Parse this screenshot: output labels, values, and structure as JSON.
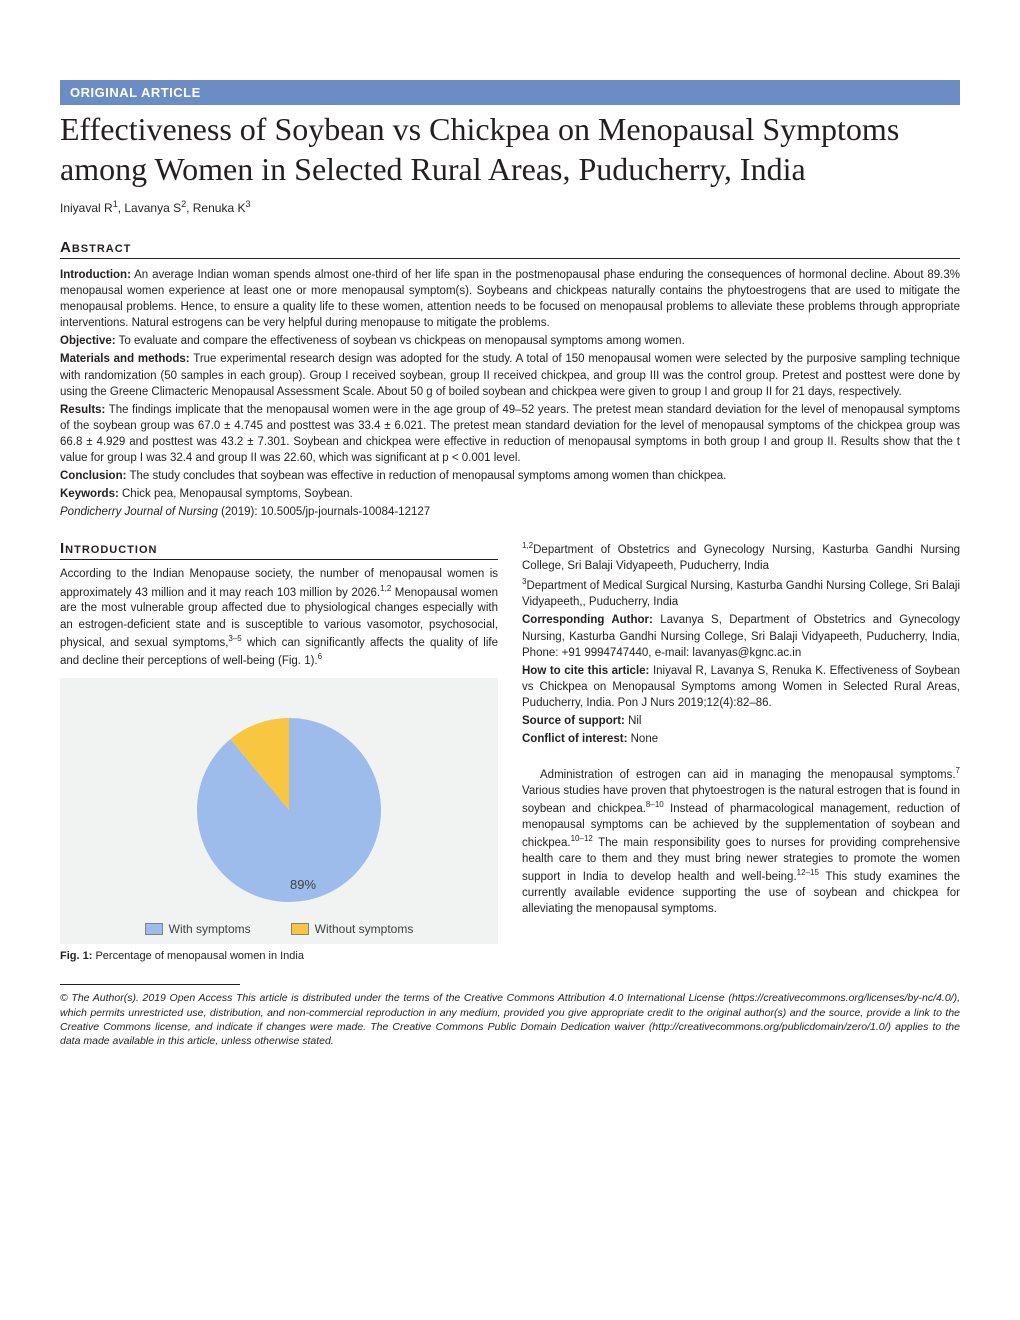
{
  "badge": "ORIGINAL ARTICLE",
  "title": "Effectiveness of Soybean vs Chickpea on Menopausal Symptoms among Women in Selected Rural Areas, Puducherry, India",
  "authors": [
    {
      "name": "Iniyaval R",
      "sup": "1"
    },
    {
      "name": "Lavanya S",
      "sup": "2"
    },
    {
      "name": "Renuka K",
      "sup": "3"
    }
  ],
  "abstract_heading": "Abstract",
  "abstract": {
    "introduction_label": "Introduction:",
    "introduction": "An average Indian woman spends almost one-third of her life span in the postmenopausal phase enduring the consequences of hormonal decline. About 89.3% menopausal women experience at least one or more menopausal symptom(s). Soybeans and chickpeas naturally contains the phytoestrogens that are used to mitigate the menopausal problems. Hence, to ensure a quality life to these women, attention needs to be focused on menopausal problems to alleviate these problems through appropriate interventions. Natural estrogens can be very helpful during menopause to mitigate the problems.",
    "objective_label": "Objective:",
    "objective": "To evaluate and compare the effectiveness of soybean vs chickpeas on menopausal symptoms among women.",
    "methods_label": "Materials and methods:",
    "methods": "True experimental research design was adopted for the study. A total of 150 menopausal women were selected by the purposive sampling technique with randomization (50 samples in each group). Group I received soybean, group II received chickpea, and group III was the control group. Pretest and posttest were done by using the Greene Climacteric Menopausal Assessment Scale. About 50 g of boiled soybean and chickpea were given to group I and group II for 21 days, respectively.",
    "results_label": "Results:",
    "results": "The findings implicate that the menopausal women were in the age group of 49–52 years. The pretest mean standard deviation for the level of menopausal symptoms of the soybean group was 67.0 ± 4.745 and posttest was 33.4 ± 6.021. The pretest mean standard deviation for the level of menopausal symptoms of the chickpea group was 66.8 ± 4.929 and posttest was 43.2 ± 7.301. Soybean and chickpea were effective in reduction of menopausal symptoms in both group I and group II. Results show that the t value for group I was 32.4 and group II was 22.60, which was significant at p < 0.001 level.",
    "conclusion_label": "Conclusion:",
    "conclusion": "The study concludes that soybean was effective in reduction of menopausal symptoms among women than chickpea.",
    "keywords_label": "Keywords:",
    "keywords": "Chick pea, Menopausal symptoms, Soybean.",
    "journal": "Pondicherry Journal of Nursing",
    "citation_tail": " (2019): 10.5005/jp-journals-10084-12127"
  },
  "intro_heading": "Introduction",
  "intro_para": "According to the Indian Menopause society, the number of menopausal women is approximately 43 million and it may reach 103 million by 2026.",
  "intro_para_sup1": "1,2",
  "intro_para2": " Menopausal women are the most vulnerable group affected due to physiological changes especially with an estrogen-deficient state and is susceptible to various vasomotor, psychosocial, physical, and sexual symptoms,",
  "intro_para_sup2": "3–5",
  "intro_para3": " which can significantly affects the quality of life and decline their perceptions of well-being (Fig. 1).",
  "intro_para_sup3": "6",
  "affiliations": {
    "a12": "Department of Obstetrics and Gynecology Nursing, Kasturba Gandhi Nursing College, Sri Balaji Vidyapeeth, Puducherry, India",
    "a3": "Department of Medical Surgical Nursing, Kasturba Gandhi Nursing College, Sri Balaji Vidyapeeth,, Puducherry, India",
    "corr_label": "Corresponding Author:",
    "corr": " Lavanya S, Department of Obstetrics and Gynecology Nursing, Kasturba Gandhi Nursing College, Sri Balaji Vidyapeeth, Puducherry, India, Phone: +91 9994747440, e-mail: lavanyas@kgnc.ac.in",
    "cite_label": "How to cite this article:",
    "cite": " Iniyaval R, Lavanya S, Renuka K. Effectiveness of Soybean vs Chickpea on Menopausal Symptoms among Women in Selected Rural Areas, Puducherry, India. Pon J Nurs 2019;12(4):82–86.",
    "support_label": "Source of support:",
    "support": " Nil",
    "coi_label": "Conflict of interest:",
    "coi": " None"
  },
  "right_body": {
    "p1a": "Administration of estrogen can aid in managing the menopausal symptoms.",
    "s1": "7",
    "p1b": " Various studies have proven that phytoestrogen is the natural estrogen that is found in soybean and chickpea.",
    "s2": "8–10",
    "p1c": " Instead of pharmacological management, reduction of menopausal symptoms can be achieved by the supplementation of soybean and chickpea.",
    "s3": "10–12",
    "p1d": " The main responsibility goes to nurses for providing comprehensive health care to them and they must bring newer strategies to promote the women support in India to develop health and well-being.",
    "s4": "12–15",
    "p1e": " This study examines the currently available evidence supporting the use of soybean and chickpea for alleviating the menopausal symptoms."
  },
  "figure": {
    "type": "pie",
    "background_color": "#f1f2f2",
    "slices": [
      {
        "label": "With symptoms",
        "value": 89,
        "color": "#9dbceb",
        "text_color": "#414042"
      },
      {
        "label": "Without symptoms",
        "value": 11,
        "color": "#f9c642",
        "text_color": "#414042"
      }
    ],
    "label_fontsize": 13,
    "caption_bold": "Fig. 1:",
    "caption": " Percentage of menopausal women in India"
  },
  "copyright": "© The Author(s). 2019 Open Access This article is distributed under the terms of the Creative Commons Attribution 4.0 International License (https://creativecommons.org/licenses/by-nc/4.0/), which permits unrestricted use, distribution, and non-commercial reproduction in any medium, provided you give appropriate credit to the original author(s) and the source, provide a link to the Creative Commons license, and indicate if changes were made. The Creative Commons Public Domain Dedication waiver (http://creativecommons.org/publicdomain/zero/1.0/) applies to the data made available in this article, unless otherwise stated."
}
